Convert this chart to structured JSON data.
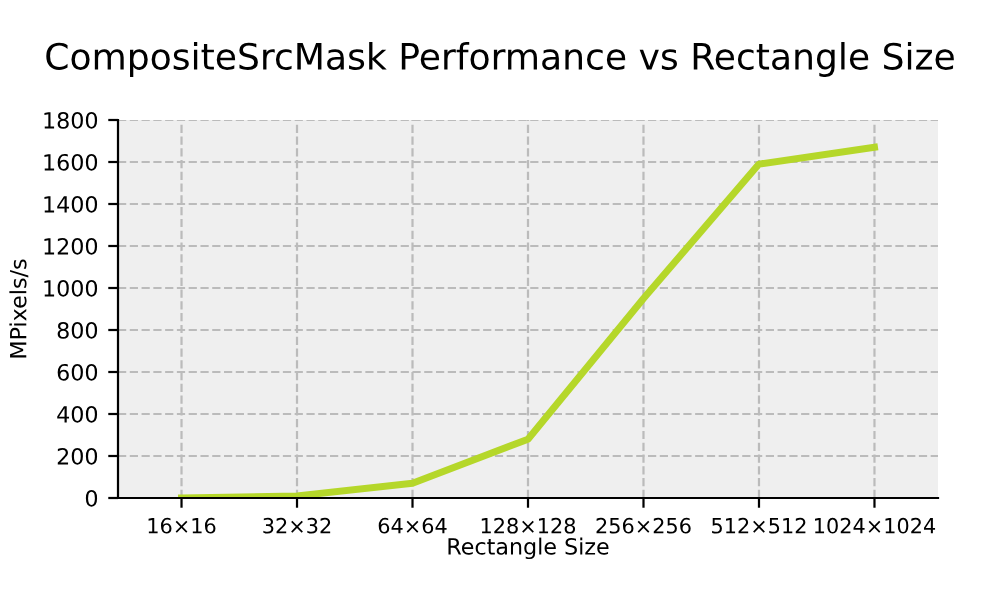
{
  "chart_data": {
    "type": "line",
    "title": "CompositeSrcMask Performance vs Rectangle Size",
    "xlabel": "Rectangle Size",
    "ylabel": "MPixels/s",
    "categories": [
      "16×16",
      "32×32",
      "64×64",
      "128×128",
      "256×256",
      "512×512",
      "1024×1024"
    ],
    "series": [
      {
        "color": "#b5d72a",
        "values": [
          0,
          10,
          70,
          280,
          950,
          1590,
          1670
        ]
      }
    ],
    "ylim": [
      0,
      1800
    ],
    "yticks": [
      0,
      200,
      400,
      600,
      800,
      1000,
      1200,
      1400,
      1600,
      1800
    ],
    "grid": true,
    "marker": "none",
    "line_style": "solid"
  }
}
